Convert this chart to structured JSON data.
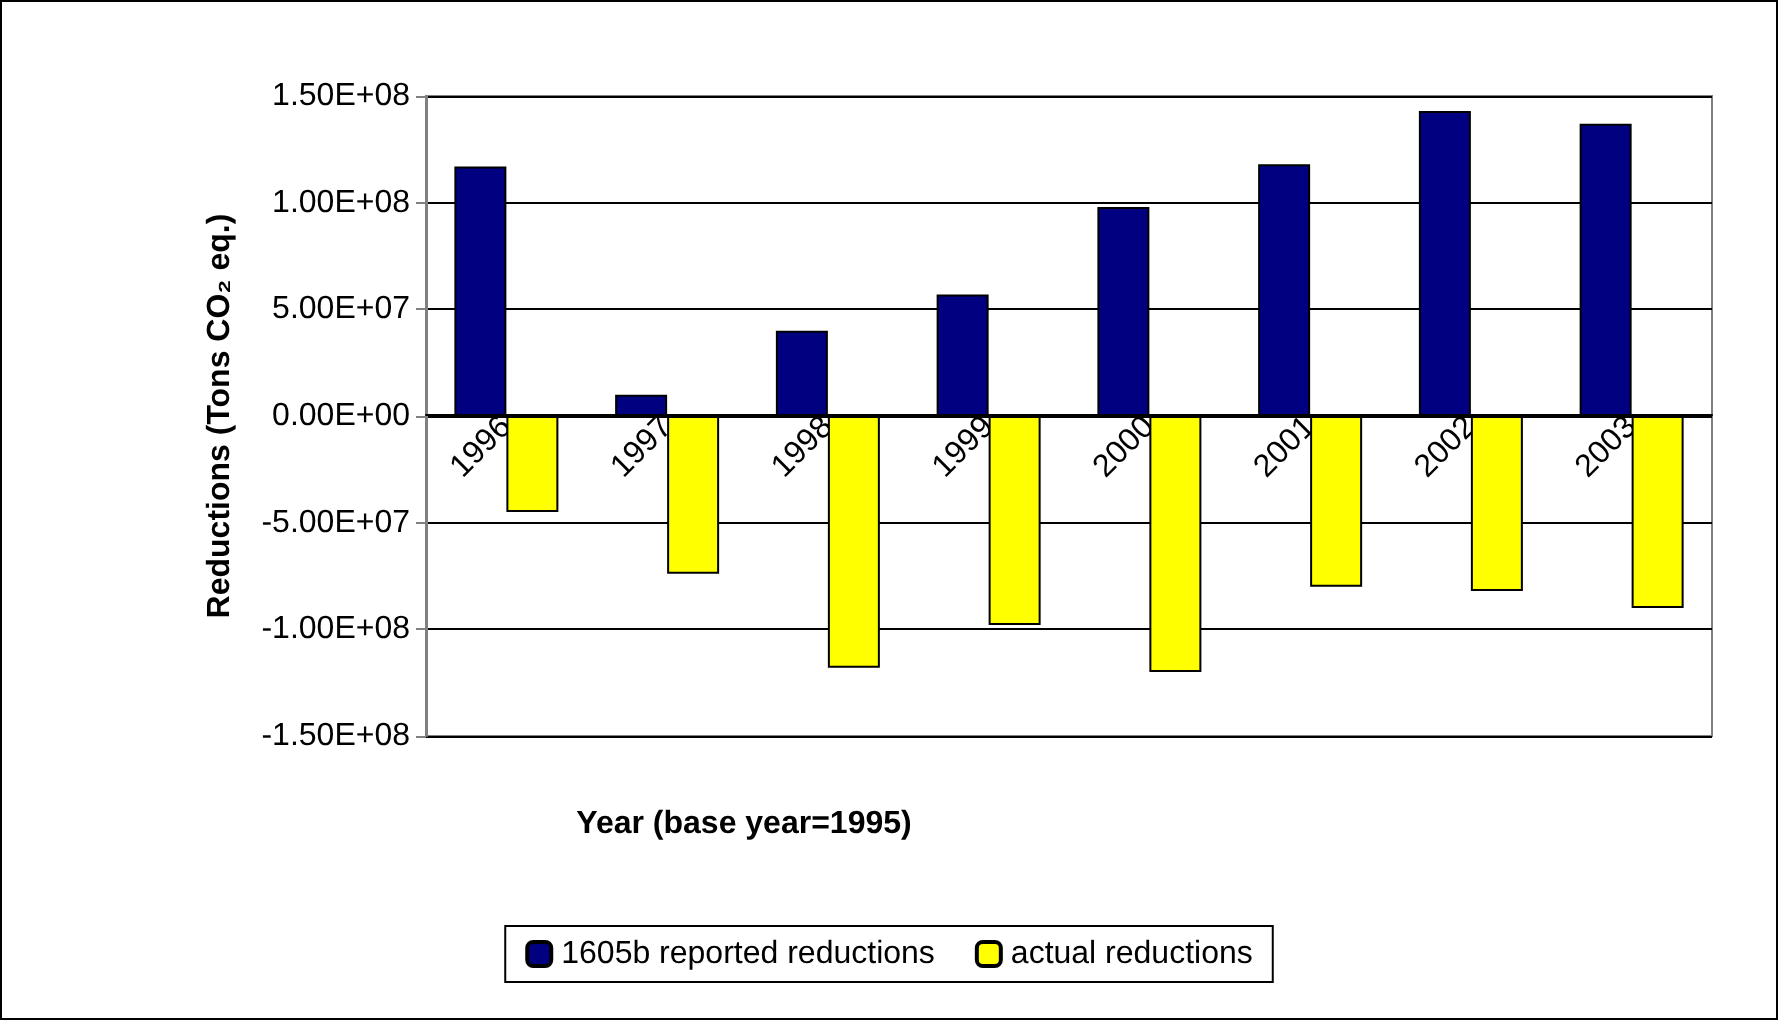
{
  "chart_data": {
    "type": "bar",
    "xlabel": "Year (base year=1995)",
    "ylabel": "Reductions (Tons CO₂ eq.)",
    "categories": [
      "1996",
      "1997",
      "1998",
      "1999",
      "2000",
      "2001",
      "2002",
      "2003"
    ],
    "series": [
      {
        "name": "1605b reported reductions",
        "color": "#000080",
        "values": [
          117000000,
          10000000,
          40000000,
          57000000,
          98000000,
          118000000,
          143000000,
          137000000
        ]
      },
      {
        "name": "actual reductions",
        "color": "#ffff00",
        "values": [
          -45000000,
          -74000000,
          -118000000,
          -98000000,
          -120000000,
          -80000000,
          -82000000,
          -90000000
        ]
      }
    ],
    "ylim": [
      -150000000,
      150000000
    ],
    "yticks": [
      {
        "value": -150000000,
        "label": "-1.50E+08"
      },
      {
        "value": -100000000,
        "label": "-1.00E+08"
      },
      {
        "value": -50000000,
        "label": "-5.00E+07"
      },
      {
        "value": 0,
        "label": "0.00E+00"
      },
      {
        "value": 50000000,
        "label": "5.00E+07"
      },
      {
        "value": 100000000,
        "label": "1.00E+08"
      },
      {
        "value": 150000000,
        "label": "1.50E+08"
      }
    ],
    "grid": "y",
    "legend": "bottom"
  }
}
